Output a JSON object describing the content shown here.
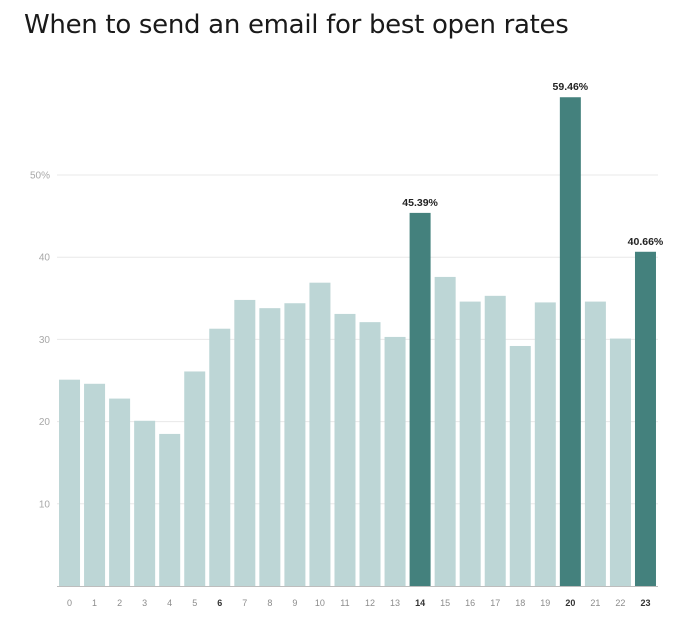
{
  "chart_data": {
    "type": "bar",
    "title": "When to send an email for best open rates",
    "xlabel": "",
    "ylabel": "",
    "categories": [
      "0",
      "1",
      "2",
      "3",
      "4",
      "5",
      "6",
      "7",
      "8",
      "9",
      "10",
      "11",
      "12",
      "13",
      "14",
      "15",
      "16",
      "17",
      "18",
      "19",
      "20",
      "21",
      "22",
      "23"
    ],
    "values": [
      25.1,
      24.6,
      22.8,
      20.1,
      18.5,
      26.1,
      31.3,
      34.8,
      33.8,
      34.4,
      36.9,
      33.1,
      32.1,
      30.3,
      45.39,
      37.6,
      34.6,
      35.3,
      29.2,
      34.5,
      59.46,
      34.6,
      30.1,
      40.66
    ],
    "highlighted_categories": [
      "14",
      "20",
      "23"
    ],
    "bold_categories": [
      "6",
      "14",
      "20",
      "23"
    ],
    "data_labels": {
      "14": "45.39%",
      "20": "59.46%",
      "23": "40.66%"
    },
    "y_ticks": [
      {
        "value": 10,
        "label": "10"
      },
      {
        "value": 20,
        "label": "20"
      },
      {
        "value": 30,
        "label": "30"
      },
      {
        "value": 40,
        "label": "40"
      },
      {
        "value": 50,
        "label": "50%"
      }
    ],
    "ylim": [
      0,
      60
    ],
    "grid": true,
    "legend": "none",
    "colors": {
      "bar": "#bdd6d6",
      "highlight": "#44817d",
      "grid": "#e8e8e8",
      "baseline": "#bdbdbd"
    }
  }
}
